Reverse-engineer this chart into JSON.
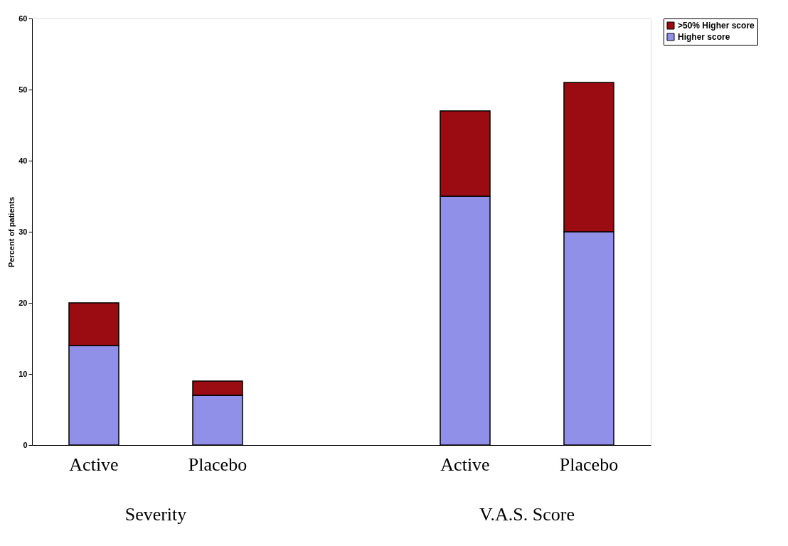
{
  "chart_data": {
    "type": "bar",
    "stacked": true,
    "ylabel": "Percent of patients",
    "categories": [
      "Active",
      "Placebo",
      "Active",
      "Placebo"
    ],
    "series": [
      {
        "name": "Higher score",
        "color": "#9090e8",
        "values": [
          14,
          7,
          35,
          30
        ]
      },
      {
        "name": ">50% Higher score",
        "color": "#9a0c12",
        "values": [
          6,
          2,
          12,
          21
        ]
      }
    ],
    "ylim": [
      0,
      60
    ],
    "yticks": [
      0,
      10,
      20,
      30,
      40,
      50,
      60
    ],
    "grid": false,
    "legend": "right",
    "annotations": [
      "Severity",
      "V.A.S. Score"
    ]
  }
}
